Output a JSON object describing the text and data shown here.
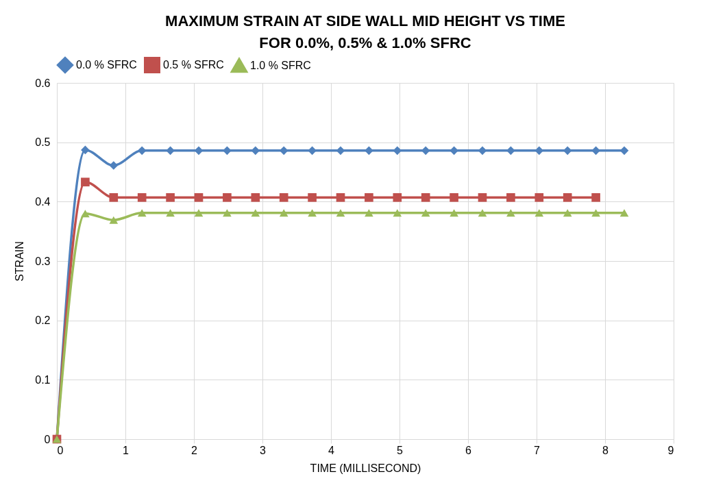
{
  "chart_data": {
    "type": "line",
    "title": "MAXIMUM STRAIN AT SIDE WALL MID HEIGHT VS TIME FOR 0.0%, 0.5% & 1.0% SFRC",
    "xlabel": "TIME (MILLISECOND)",
    "ylabel": "STRAIN",
    "x": [
      0,
      0.414,
      0.828,
      1.242,
      1.656,
      2.07,
      2.484,
      2.898,
      3.312,
      3.726,
      4.14,
      4.554,
      4.968,
      5.382,
      5.796,
      6.21,
      6.624,
      7.038,
      7.452,
      7.866,
      8.28
    ],
    "series": [
      {
        "name": "0.0 % SFRC",
        "color": "#4f81bd",
        "marker": "diamond",
        "values": [
          0,
          0.487,
          0.461,
          0.486,
          0.486,
          0.486,
          0.486,
          0.486,
          0.486,
          0.486,
          0.486,
          0.486,
          0.486,
          0.486,
          0.486,
          0.486,
          0.486,
          0.486,
          0.486,
          0.486,
          0.486
        ]
      },
      {
        "name": "0.5 % SFRC",
        "color": "#c0504d",
        "marker": "square",
        "values": [
          0,
          0.433,
          0.407,
          0.407,
          0.407,
          0.407,
          0.407,
          0.407,
          0.407,
          0.407,
          0.407,
          0.407,
          0.407,
          0.407,
          0.407,
          0.407,
          0.407,
          0.407,
          0.407,
          0.407,
          null
        ]
      },
      {
        "name": "1.0 % SFRC",
        "color": "#9bbb59",
        "marker": "triangle",
        "values": [
          0,
          0.38,
          0.369,
          0.381,
          0.381,
          0.381,
          0.381,
          0.381,
          0.381,
          0.381,
          0.381,
          0.381,
          0.381,
          0.381,
          0.381,
          0.381,
          0.381,
          0.381,
          0.381,
          0.381,
          0.381
        ]
      }
    ],
    "xlim": [
      0,
      9
    ],
    "xticks": [
      0,
      1,
      2,
      3,
      4,
      5,
      6,
      7,
      8,
      9
    ],
    "ylim": [
      0,
      0.6
    ],
    "yticks": [
      0,
      0.1,
      0.2,
      0.3,
      0.4,
      0.5,
      0.6
    ],
    "grid": true,
    "legend": "top"
  }
}
